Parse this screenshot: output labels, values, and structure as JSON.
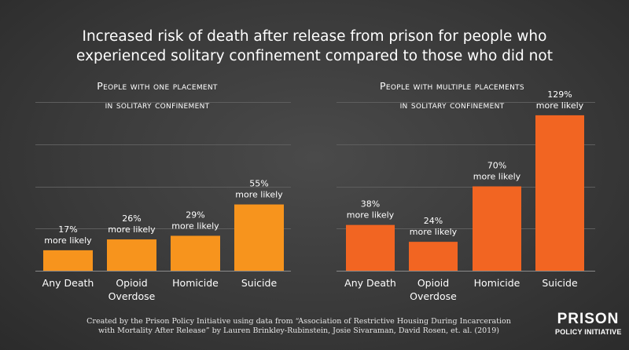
{
  "title": {
    "line1": "Increased risk of death after release from prison for people who",
    "line2": "experienced solitary confinement compared to those who did not"
  },
  "chart_data": [
    {
      "type": "bar",
      "title": [
        "People with one placement",
        "in solitary confinement"
      ],
      "categories": [
        [
          "Any Death"
        ],
        [
          "Opioid",
          "Overdose"
        ],
        [
          "Homicide"
        ],
        [
          "Suicide"
        ]
      ],
      "values": [
        17,
        26,
        29,
        55
      ],
      "data_labels": [
        [
          "17%",
          "more likely"
        ],
        [
          "26%",
          "more likely"
        ],
        [
          "29%",
          "more likely"
        ],
        [
          "55%",
          "more likely"
        ]
      ],
      "ylim": [
        0,
        140
      ],
      "grid": true,
      "color": "#f7941d"
    },
    {
      "type": "bar",
      "title": [
        "People with multiple placements",
        "in solitary confinement"
      ],
      "categories": [
        [
          "Any Death"
        ],
        [
          "Opioid",
          "Overdose"
        ],
        [
          "Homicide"
        ],
        [
          "Suicide"
        ]
      ],
      "values": [
        38,
        24,
        70,
        129
      ],
      "data_labels": [
        [
          "38%",
          "more likely"
        ],
        [
          "24%",
          "more likely"
        ],
        [
          "70%",
          "more likely"
        ],
        [
          "129%",
          "more likely"
        ]
      ],
      "ylim": [
        0,
        140
      ],
      "grid": true,
      "color": "#f26522"
    }
  ],
  "footer": {
    "line1": "Created by the Prison Policy Initiative using data from “Association of Restrictive Housing During Incarceration",
    "line2": "with Mortality After Release” by Lauren Brinkley-Rubinstein, Josie Sivaraman, David Rosen, et. al. (2019)"
  },
  "logo": {
    "top": "PRISON",
    "bottom": "POLICY INITIATIVE"
  }
}
